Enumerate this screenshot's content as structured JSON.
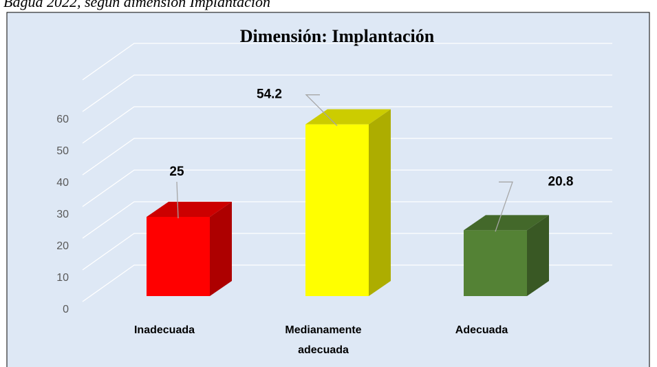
{
  "caption": "Bagua 2022, según dimensión Implantación",
  "chart_data": {
    "type": "bar3d",
    "title": "Dimensión: Implantación",
    "categories": [
      "Inadecuada",
      "Medianamente adecuada",
      "Adecuada"
    ],
    "values": [
      25,
      54.2,
      20.8
    ],
    "colors": [
      "#ff0000",
      "#ffff00",
      "#548235"
    ],
    "ylim": [
      0,
      70
    ],
    "yticks": [
      0,
      10,
      20,
      30,
      40,
      50,
      60
    ],
    "grid": true
  }
}
